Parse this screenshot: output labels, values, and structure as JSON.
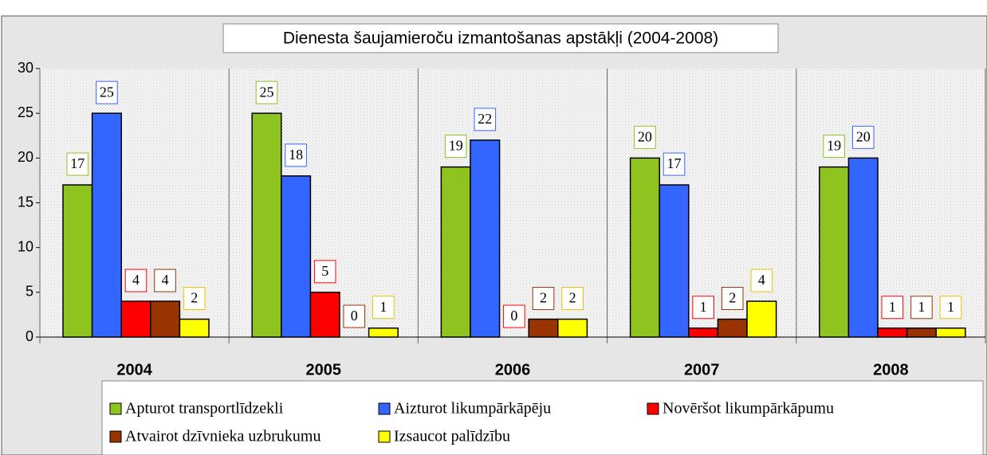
{
  "chart_data": {
    "type": "bar",
    "title": "Dienesta šaujamieroču izmantošanas apstākļi (2004-2008)",
    "categories": [
      "2004",
      "2005",
      "2006",
      "2007",
      "2008"
    ],
    "series": [
      {
        "name": "Apturot transportlīdzekli",
        "color": "#8fc31f",
        "values": [
          17,
          25,
          19,
          20,
          19
        ]
      },
      {
        "name": "Aizturot likumpārkāpēju",
        "color": "#3366ff",
        "values": [
          25,
          18,
          22,
          17,
          20
        ]
      },
      {
        "name": "Novēršot likumpārkāpumu",
        "color": "#ff0000",
        "values": [
          4,
          5,
          0,
          1,
          1
        ]
      },
      {
        "name": "Atvairot dzīvnieka uzbrukumu",
        "color": "#993300",
        "values": [
          4,
          0,
          2,
          2,
          1
        ]
      },
      {
        "name": "Izsaucot palīdzību",
        "color": "#ffff00",
        "values": [
          2,
          1,
          2,
          4,
          1
        ]
      }
    ],
    "ylim": [
      0,
      30
    ],
    "yticks": [
      0,
      5,
      10,
      15,
      20,
      25,
      30
    ],
    "legend": "bottom"
  }
}
